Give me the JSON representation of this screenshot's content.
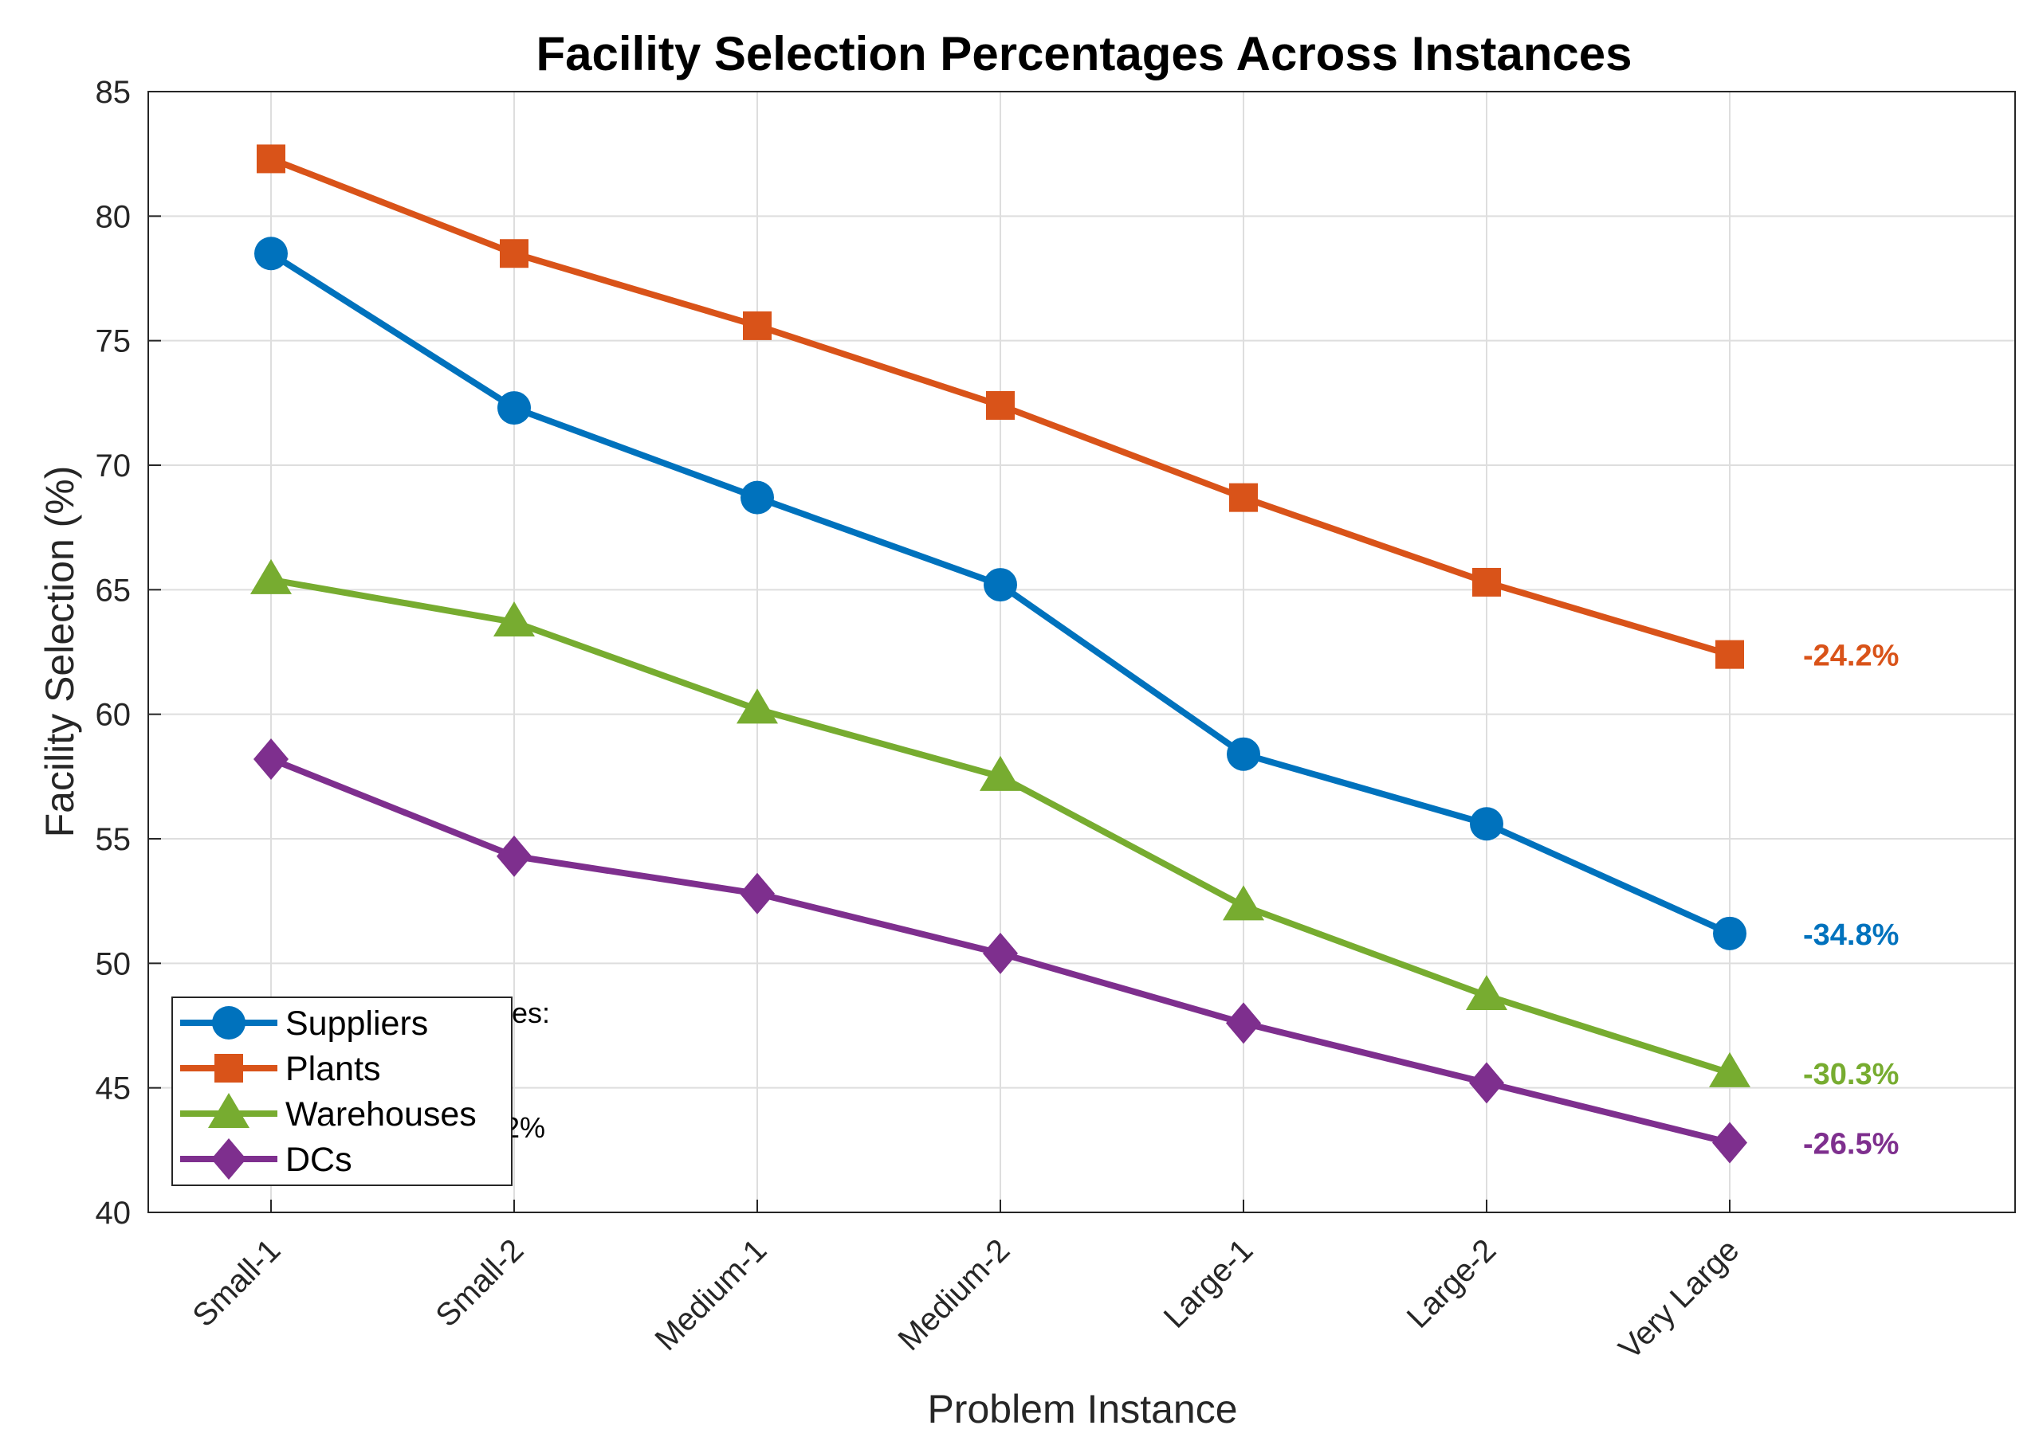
{
  "chart_data": {
    "type": "line",
    "title": "Facility Selection Percentages Across Instances",
    "xlabel": "Problem Instance",
    "ylabel": "Facility Selection (%)",
    "ylim": [
      40,
      85
    ],
    "yticks": [
      40,
      45,
      50,
      55,
      60,
      65,
      70,
      75,
      80,
      85
    ],
    "grid": true,
    "legend_position": "bottom-left",
    "categories": [
      "Small-1",
      "Small-2",
      "Medium-1",
      "Medium-2",
      "Large-1",
      "Large-2",
      "Very Large"
    ],
    "series": [
      {
        "name": "Suppliers",
        "color": "#0072BD",
        "marker": "circle",
        "values": [
          78.5,
          72.3,
          68.7,
          65.2,
          58.4,
          55.6,
          51.2
        ],
        "change_label": "-34.8%"
      },
      {
        "name": "Plants",
        "color": "#D95319",
        "marker": "square",
        "values": [
          82.3,
          78.5,
          75.6,
          72.4,
          68.7,
          65.3,
          62.4
        ],
        "change_label": "-24.2%"
      },
      {
        "name": "Warehouses",
        "color": "#77AC30",
        "marker": "triangle",
        "values": [
          65.4,
          63.7,
          60.2,
          57.5,
          52.3,
          48.7,
          45.6
        ],
        "change_label": "-30.3%"
      },
      {
        "name": "DCs",
        "color": "#7E2F8E",
        "marker": "diamond",
        "values": [
          58.2,
          54.3,
          52.8,
          50.4,
          47.6,
          45.2,
          42.8
        ],
        "change_label": "-26.5%"
      }
    ],
    "occluded_text": {
      "line1": "ates:",
      "line2": "2%"
    }
  }
}
